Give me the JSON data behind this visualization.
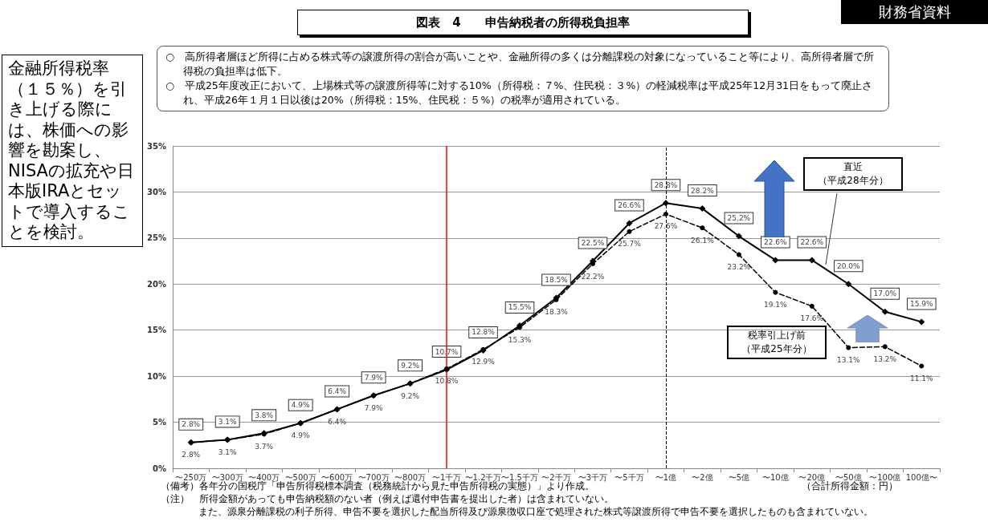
{
  "chart_data": {
    "type": "line",
    "title": "図表　4　　申告納税者の所得税負担率",
    "categories": [
      "〜250万",
      "〜300万",
      "〜400万",
      "〜500万",
      "〜600万",
      "〜700万",
      "〜800万",
      "〜1千万",
      "〜1.2千万",
      "〜1.5千万",
      "〜2千万",
      "〜3千万",
      "〜5千万",
      "〜1億",
      "〜2億",
      "〜5億",
      "〜10億",
      "〜20億",
      "〜50億",
      "〜100億",
      "100億〜"
    ],
    "series": [
      {
        "name": "直近（平成28年分）",
        "color": "#000000",
        "marker": "diamond",
        "line_style": "solid",
        "values": [
          2.8,
          3.1,
          3.8,
          4.9,
          6.4,
          7.9,
          9.2,
          10.7,
          12.8,
          15.5,
          18.5,
          22.5,
          26.6,
          28.8,
          28.2,
          25.2,
          22.6,
          22.6,
          20.0,
          17.0,
          15.9
        ],
        "value_labels": [
          "2.8%",
          "3.1%",
          "3.8%",
          "4.9%",
          "6.4%",
          "7.9%",
          "9.2%",
          "10.7%",
          "12.8%",
          "15.5%",
          "18.5%",
          "22.5%",
          "26.6%",
          "28.8%",
          "28.2%",
          "25.2%",
          "22.6%",
          "22.6%",
          "20.0%",
          "17.0%",
          "15.9%"
        ]
      },
      {
        "name": "税率引上げ前（平成25年分）",
        "color": "#000000",
        "marker": "circle",
        "line_style": "dashed",
        "values": [
          2.8,
          3.1,
          3.7,
          4.9,
          6.4,
          7.9,
          9.2,
          10.8,
          12.9,
          15.3,
          18.3,
          22.2,
          25.7,
          27.6,
          26.1,
          23.2,
          19.1,
          17.6,
          13.1,
          13.2,
          11.1
        ],
        "value_labels": [
          "2.8%",
          "3.1%",
          "3.7%",
          "4.9%",
          "6.4%",
          "7.9%",
          "9.2%",
          "10.8%",
          "12.9%",
          "15.3%",
          "18.3%",
          "22.2%",
          "25.7%",
          "27.6%",
          "26.1%",
          "23.2%",
          "19.1%",
          "17.6%",
          "13.1%",
          "13.2%",
          "11.1%"
        ]
      }
    ],
    "ylim": [
      0,
      35
    ],
    "yticks": [
      {
        "value": 0,
        "label": "0%"
      },
      {
        "value": 5,
        "label": "5%"
      },
      {
        "value": 10,
        "label": "10%"
      },
      {
        "value": 15,
        "label": "15%"
      },
      {
        "value": 20,
        "label": "20%"
      },
      {
        "value": 25,
        "label": "25%"
      },
      {
        "value": 30,
        "label": "30%"
      },
      {
        "value": 35,
        "label": "35%"
      }
    ],
    "grid": "y",
    "legend": false,
    "ref_lines": [
      {
        "axis": "x",
        "value": "〜1千万",
        "label": null,
        "color": "#ff0000",
        "line_style": "solid"
      },
      {
        "axis": "x",
        "value": "〜1億",
        "label": null,
        "color": "#000000",
        "line_style": "dashed"
      }
    ],
    "annotations": [
      "財務省資料",
      "○　高所得者層ほど所得に占める株式等の譲渡所得の割合が高いことや、金融所得の多くは分離課税の対象になっていること等により、高所得者層で所得税の負担率は低下。",
      "○　平成25年度改正において、上場株式等の譲渡所得等に対する10%（所得税：７%、住民税：３%）の軽減税率は平成25年12月31日をもって廃止され、平成26年１月１日以後は20%（所得税：15%、住民税：５%）の税率が適用されている。",
      "金融所得税率（１５％）を引き上げる際には、株価への影響を勘案し、NISAの拡充や日本版IRAとセットで導入することを検討。",
      "（備考）各年分の国税庁「申告所得税標本調査（税務統計から見た申告所得税の実態）」より作成。",
      "（合計所得金額：円）",
      "（注）　所得金額があっても申告納税額のない者（例えば還付申告書を提出した者）は含まれていない。",
      "また、源泉分離課税の利子所得、申告不要を選択した配当所得及び源泉徴収口座で処理された株式等譲渡所得で申告不要を選択したものも含まれていない。"
    ]
  }
}
